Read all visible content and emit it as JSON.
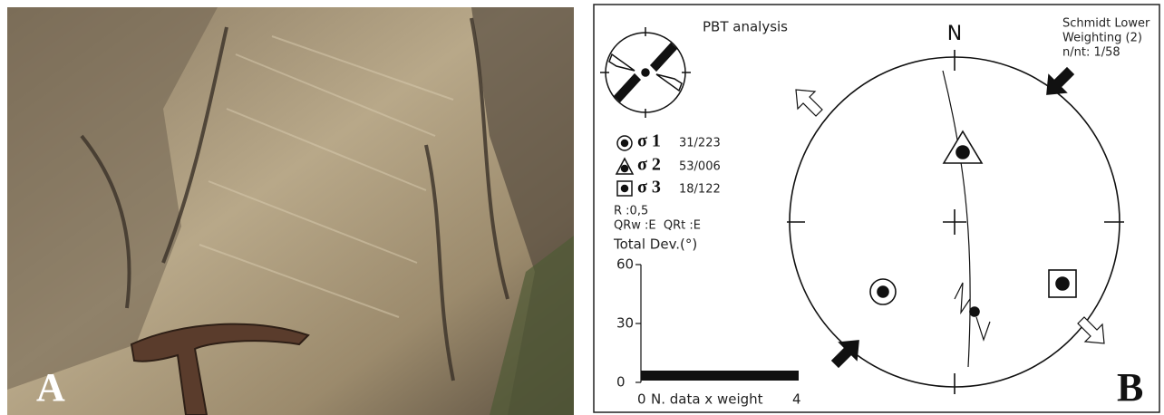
{
  "panel_a": {
    "label": "A"
  },
  "panel_b": {
    "label": "B",
    "title": "PBT analysis",
    "north": "N",
    "projection": [
      "Schmidt Lower",
      "Weighting (2)",
      "n/nt: 1/58"
    ],
    "sigmas": [
      {
        "name": "σ 1",
        "value": "31/223"
      },
      {
        "name": "σ 2",
        "value": "53/006"
      },
      {
        "name": "σ 3",
        "value": "18/122"
      }
    ],
    "ratio": "R :0,5",
    "quality": "QRw :E  QRt :E",
    "histogram": {
      "title": "Total Dev.(°)",
      "yticks": [
        "60",
        "30",
        "0"
      ],
      "xticks": [
        "0",
        "4"
      ],
      "xlabel": "N. data x weight"
    }
  }
}
